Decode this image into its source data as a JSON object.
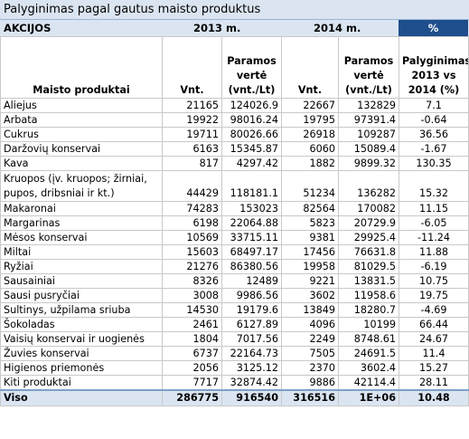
{
  "title": "Palyginimas pagal gautus maisto produktus",
  "header": {
    "section": "AKCIJOS",
    "year1": "2013 m.",
    "year2": "2014 m.",
    "percent": "%"
  },
  "columns": {
    "product": "Maisto produktai",
    "units1": "Vnt.",
    "value1": "Paramos vertė (vnt./Lt)",
    "units2": "Vnt.",
    "value2": "Paramos vertė (vnt./Lt)",
    "compare": "Palyginimas 2013 vs 2014 (%)"
  },
  "rows": [
    {
      "name": "Aliejus",
      "u13": "21165",
      "v13": "124026.9",
      "u14": "22667",
      "v14": "132829",
      "pct": "7.1"
    },
    {
      "name": "Arbata",
      "u13": "19922",
      "v13": "98016.24",
      "u14": "19795",
      "v14": "97391.4",
      "pct": "-0.64"
    },
    {
      "name": "Cukrus",
      "u13": "19711",
      "v13": "80026.66",
      "u14": "26918",
      "v14": "109287",
      "pct": "36.56"
    },
    {
      "name": "Daržovių konservai",
      "u13": "6163",
      "v13": "15345.87",
      "u14": "6060",
      "v14": "15089.4",
      "pct": "-1.67"
    },
    {
      "name": "Kava",
      "u13": "817",
      "v13": "4297.42",
      "u14": "1882",
      "v14": "9899.32",
      "pct": "130.35"
    },
    {
      "name": "Kruopos (įv. kruopos; žirniai, pupos, dribsniai ir kt.)",
      "u13": "44429",
      "v13": "118181.1",
      "u14": "51234",
      "v14": "136282",
      "pct": "15.32",
      "tall": true
    },
    {
      "name": "Makaronai",
      "u13": "74283",
      "v13": "153023",
      "u14": "82564",
      "v14": "170082",
      "pct": "11.15"
    },
    {
      "name": "Margarinas",
      "u13": "6198",
      "v13": "22064.88",
      "u14": "5823",
      "v14": "20729.9",
      "pct": "-6.05"
    },
    {
      "name": "Mėsos konservai",
      "u13": "10569",
      "v13": "33715.11",
      "u14": "9381",
      "v14": "29925.4",
      "pct": "-11.24"
    },
    {
      "name": "Miltai",
      "u13": "15603",
      "v13": "68497.17",
      "u14": "17456",
      "v14": "76631.8",
      "pct": "11.88"
    },
    {
      "name": "Ryžiai",
      "u13": "21276",
      "v13": "86380.56",
      "u14": "19958",
      "v14": "81029.5",
      "pct": "-6.19"
    },
    {
      "name": "Sausainiai",
      "u13": "8326",
      "v13": "12489",
      "u14": "9221",
      "v14": "13831.5",
      "pct": "10.75"
    },
    {
      "name": "Sausi pusryčiai",
      "u13": "3008",
      "v13": "9986.56",
      "u14": "3602",
      "v14": "11958.6",
      "pct": "19.75"
    },
    {
      "name": "Sultinys, užpilama sriuba",
      "u13": "14530",
      "v13": "19179.6",
      "u14": "13849",
      "v14": "18280.7",
      "pct": "-4.69"
    },
    {
      "name": "Šokoladas",
      "u13": "2461",
      "v13": "6127.89",
      "u14": "4096",
      "v14": "10199",
      "pct": "66.44"
    },
    {
      "name": "Vaisių konservai ir uogienės",
      "u13": "1804",
      "v13": "7017.56",
      "u14": "2249",
      "v14": "8748.61",
      "pct": "24.67"
    },
    {
      "name": "Žuvies konservai",
      "u13": "6737",
      "v13": "22164.73",
      "u14": "7505",
      "v14": "24691.5",
      "pct": "11.4"
    },
    {
      "name": "Higienos priemonės",
      "u13": "2056",
      "v13": "3125.12",
      "u14": "2370",
      "v14": "3602.4",
      "pct": "15.27"
    },
    {
      "name": "Kiti produktai",
      "u13": "7717",
      "v13": "32874.42",
      "u14": "9886",
      "v14": "42114.4",
      "pct": "28.11"
    }
  ],
  "total": {
    "name": "Viso",
    "u13": "286775",
    "v13": "916540",
    "u14": "316516",
    "v14": "1E+06",
    "pct": "10.48"
  },
  "colors": {
    "header_bg": "#dbe5f1",
    "percent_bg": "#1f4e8c",
    "grid": "#c9c9c9"
  }
}
